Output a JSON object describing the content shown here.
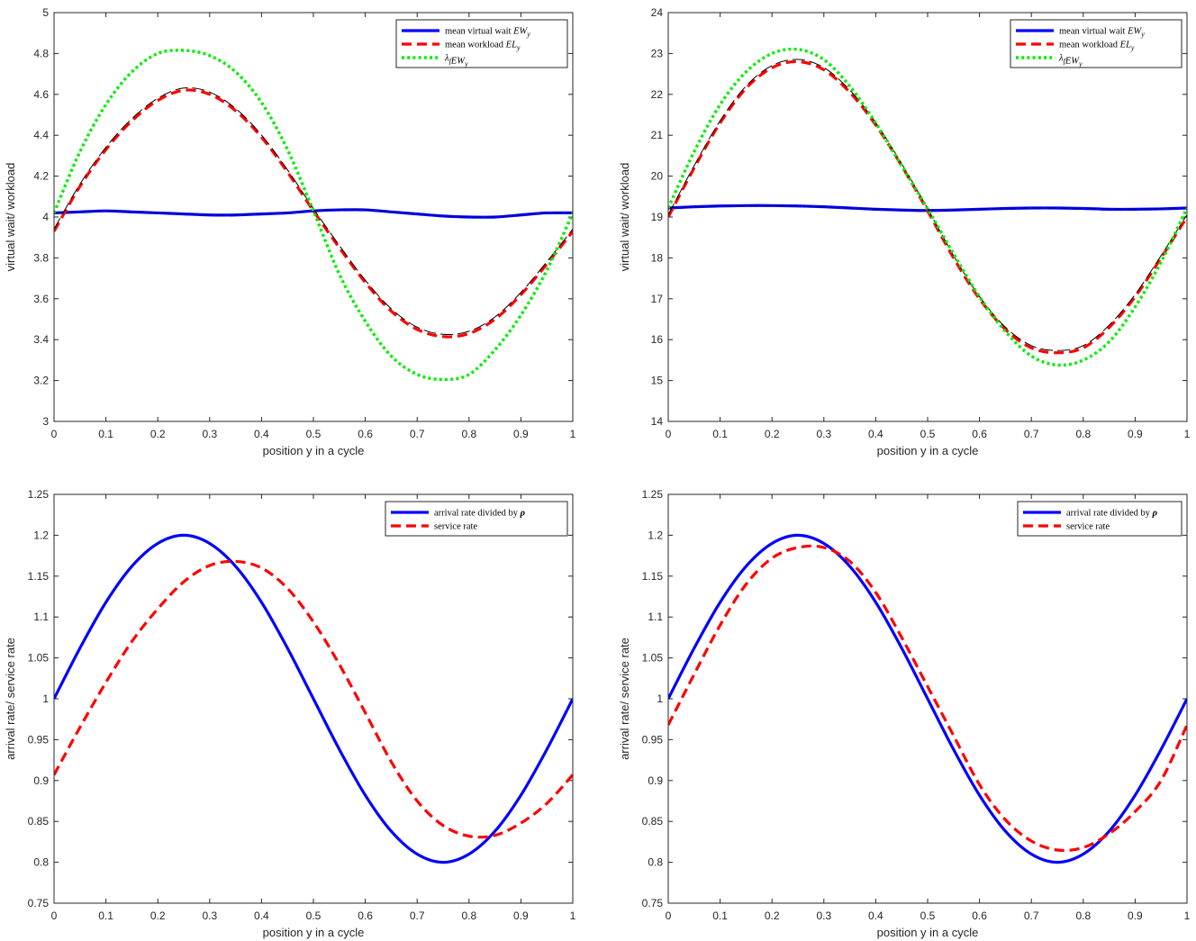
{
  "chart_data": [
    {
      "type": "line",
      "xlabel": "position y in a cycle",
      "ylabel": "virtual wait/ workload",
      "xlim": [
        0,
        1
      ],
      "ylim": [
        3,
        5
      ],
      "xticks": [
        "0",
        "0.1",
        "0.2",
        "0.3",
        "0.4",
        "0.5",
        "0.6",
        "0.7",
        "0.8",
        "0.9",
        "1"
      ],
      "yticks": [
        "3",
        "3.2",
        "3.4",
        "3.6",
        "3.8",
        "4",
        "4.2",
        "4.4",
        "4.6",
        "4.8",
        "5"
      ],
      "legend": "top-right",
      "series": [
        {
          "name": "mean virtual wait EW_y",
          "legend_main": "mean virtual wait ",
          "legend_math": "EW",
          "legend_sub": "y",
          "color": "#0000ff",
          "style": "solid",
          "x": [
            0,
            0.05,
            0.1,
            0.15,
            0.2,
            0.25,
            0.3,
            0.35,
            0.4,
            0.45,
            0.5,
            0.55,
            0.6,
            0.65,
            0.7,
            0.75,
            0.8,
            0.85,
            0.9,
            0.95,
            1
          ],
          "y": [
            4.02,
            4.025,
            4.03,
            4.025,
            4.02,
            4.015,
            4.01,
            4.01,
            4.015,
            4.02,
            4.03,
            4.035,
            4.035,
            4.025,
            4.015,
            4.005,
            4.0,
            4.0,
            4.01,
            4.02,
            4.02
          ]
        },
        {
          "name": "mean workload EL_y",
          "legend_main": "mean workload ",
          "legend_math": "EL",
          "legend_sub": "y",
          "color": "#ff0000",
          "style": "dash",
          "x": [
            0,
            0.05,
            0.1,
            0.15,
            0.2,
            0.25,
            0.3,
            0.35,
            0.4,
            0.45,
            0.5,
            0.55,
            0.6,
            0.65,
            0.7,
            0.75,
            0.8,
            0.85,
            0.9,
            0.95,
            1
          ],
          "y": [
            3.93,
            4.15,
            4.33,
            4.47,
            4.57,
            4.62,
            4.6,
            4.52,
            4.39,
            4.22,
            4.03,
            3.85,
            3.68,
            3.54,
            3.45,
            3.415,
            3.43,
            3.5,
            3.62,
            3.77,
            3.93
          ]
        },
        {
          "name": "lambda_f EW_y",
          "legend_main": "",
          "legend_math": "λ",
          "legend_sub": "f",
          "legend_math2": "EW",
          "legend_sub2": "y",
          "color": "#00ee00",
          "style": "dot",
          "x": [
            0,
            0.05,
            0.1,
            0.15,
            0.2,
            0.25,
            0.3,
            0.35,
            0.4,
            0.45,
            0.5,
            0.55,
            0.6,
            0.65,
            0.7,
            0.75,
            0.8,
            0.85,
            0.9,
            0.95,
            1
          ],
          "y": [
            4.02,
            4.32,
            4.55,
            4.71,
            4.8,
            4.815,
            4.79,
            4.71,
            4.56,
            4.33,
            4.03,
            3.72,
            3.49,
            3.32,
            3.23,
            3.205,
            3.23,
            3.35,
            3.52,
            3.74,
            4.02
          ]
        }
      ]
    },
    {
      "type": "line",
      "xlabel": "position y in a cycle",
      "ylabel": "virtual wait/ workload",
      "xlim": [
        0,
        1
      ],
      "ylim": [
        14,
        24
      ],
      "xticks": [
        "0",
        "0.1",
        "0.2",
        "0.3",
        "0.4",
        "0.5",
        "0.6",
        "0.7",
        "0.8",
        "0.9",
        "1"
      ],
      "yticks": [
        "14",
        "15",
        "16",
        "17",
        "18",
        "19",
        "20",
        "21",
        "22",
        "23",
        "24"
      ],
      "legend": "top-right",
      "series": [
        {
          "name": "mean virtual wait EW_y",
          "legend_main": "mean virtual wait ",
          "legend_math": "EW",
          "legend_sub": "y",
          "color": "#0000ff",
          "style": "solid",
          "x": [
            0,
            0.05,
            0.1,
            0.15,
            0.2,
            0.25,
            0.3,
            0.35,
            0.4,
            0.45,
            0.5,
            0.55,
            0.6,
            0.65,
            0.7,
            0.75,
            0.8,
            0.85,
            0.9,
            0.95,
            1
          ],
          "y": [
            19.22,
            19.25,
            19.27,
            19.28,
            19.28,
            19.27,
            19.25,
            19.22,
            19.19,
            19.17,
            19.16,
            19.17,
            19.19,
            19.21,
            19.22,
            19.22,
            19.21,
            19.19,
            19.19,
            19.2,
            19.22
          ]
        },
        {
          "name": "mean workload EL_y",
          "legend_main": "mean workload ",
          "legend_math": "EL",
          "legend_sub": "y",
          "color": "#ff0000",
          "style": "dash",
          "x": [
            0,
            0.05,
            0.1,
            0.15,
            0.2,
            0.25,
            0.3,
            0.35,
            0.4,
            0.45,
            0.5,
            0.55,
            0.6,
            0.65,
            0.7,
            0.75,
            0.8,
            0.85,
            0.9,
            0.95,
            1
          ],
          "y": [
            19.0,
            20.2,
            21.3,
            22.15,
            22.65,
            22.8,
            22.6,
            22.05,
            21.25,
            20.25,
            19.15,
            18.0,
            17.0,
            16.25,
            15.8,
            15.68,
            15.8,
            16.3,
            17.05,
            18.0,
            19.0
          ]
        },
        {
          "name": "lambda_f EW_y",
          "legend_main": "",
          "legend_math": "λ",
          "legend_sub": "f",
          "legend_math2": "EW",
          "legend_sub2": "y",
          "color": "#00ee00",
          "style": "dot",
          "x": [
            0,
            0.05,
            0.1,
            0.15,
            0.2,
            0.25,
            0.3,
            0.35,
            0.4,
            0.45,
            0.5,
            0.55,
            0.6,
            0.65,
            0.7,
            0.75,
            0.8,
            0.85,
            0.9,
            0.95,
            1
          ],
          "y": [
            19.22,
            20.6,
            21.75,
            22.55,
            23.0,
            23.1,
            22.85,
            22.2,
            21.3,
            20.25,
            19.2,
            18.1,
            17.05,
            16.2,
            15.6,
            15.38,
            15.5,
            15.95,
            16.8,
            17.9,
            19.22
          ]
        }
      ]
    },
    {
      "type": "line",
      "xlabel": "position y in a cycle",
      "ylabel": "arrival rate/ service rate",
      "xlim": [
        0,
        1
      ],
      "ylim": [
        0.75,
        1.25
      ],
      "xticks": [
        "0",
        "0.1",
        "0.2",
        "0.3",
        "0.4",
        "0.5",
        "0.6",
        "0.7",
        "0.8",
        "0.9",
        "1"
      ],
      "yticks": [
        "0.75",
        "0.8",
        "0.85",
        "0.9",
        "0.95",
        "1",
        "1.05",
        "1.1",
        "1.15",
        "1.2",
        "1.25"
      ],
      "legend": "top-right",
      "series": [
        {
          "name": "arrival rate divided by ρ",
          "legend_main": "arrival rate divided by ",
          "legend_bold": "ρ",
          "color": "#0000ff",
          "style": "solid",
          "x": [
            0,
            0.05,
            0.1,
            0.15,
            0.2,
            0.25,
            0.3,
            0.35,
            0.4,
            0.45,
            0.5,
            0.55,
            0.6,
            0.65,
            0.7,
            0.75,
            0.8,
            0.85,
            0.9,
            0.95,
            1
          ],
          "y": [
            1.0,
            1.062,
            1.118,
            1.162,
            1.19,
            1.2,
            1.19,
            1.162,
            1.118,
            1.062,
            1.0,
            0.938,
            0.882,
            0.838,
            0.81,
            0.8,
            0.81,
            0.838,
            0.882,
            0.938,
            1.0
          ]
        },
        {
          "name": "service rate",
          "legend_main": "service rate",
          "color": "#ff0000",
          "style": "dash",
          "x": [
            0,
            0.05,
            0.1,
            0.15,
            0.2,
            0.25,
            0.3,
            0.35,
            0.4,
            0.45,
            0.5,
            0.55,
            0.6,
            0.65,
            0.7,
            0.75,
            0.8,
            0.85,
            0.9,
            0.95,
            1
          ],
          "y": [
            0.907,
            0.965,
            1.02,
            1.07,
            1.11,
            1.143,
            1.163,
            1.168,
            1.16,
            1.135,
            1.094,
            1.042,
            0.983,
            0.923,
            0.875,
            0.845,
            0.832,
            0.833,
            0.848,
            0.872,
            0.907
          ]
        }
      ]
    },
    {
      "type": "line",
      "xlabel": "position y in a cycle",
      "ylabel": "arrival rate/ service rate",
      "xlim": [
        0,
        1
      ],
      "ylim": [
        0.75,
        1.25
      ],
      "xticks": [
        "0",
        "0.1",
        "0.2",
        "0.3",
        "0.4",
        "0.5",
        "0.6",
        "0.7",
        "0.8",
        "0.9",
        "1"
      ],
      "yticks": [
        "0.75",
        "0.8",
        "0.85",
        "0.9",
        "0.95",
        "1",
        "1.05",
        "1.1",
        "1.15",
        "1.2",
        "1.25"
      ],
      "legend": "top-right",
      "series": [
        {
          "name": "arrival rate divided by ρ",
          "legend_main": "arrival rate divided by ",
          "legend_bold": "ρ",
          "color": "#0000ff",
          "style": "solid",
          "x": [
            0,
            0.05,
            0.1,
            0.15,
            0.2,
            0.25,
            0.3,
            0.35,
            0.4,
            0.45,
            0.5,
            0.55,
            0.6,
            0.65,
            0.7,
            0.75,
            0.8,
            0.85,
            0.9,
            0.95,
            1
          ],
          "y": [
            1.0,
            1.062,
            1.118,
            1.162,
            1.19,
            1.2,
            1.19,
            1.162,
            1.118,
            1.062,
            1.0,
            0.938,
            0.882,
            0.838,
            0.81,
            0.8,
            0.81,
            0.838,
            0.882,
            0.938,
            1.0
          ]
        },
        {
          "name": "service rate",
          "legend_main": "service rate",
          "color": "#ff0000",
          "style": "dash",
          "x": [
            0,
            0.05,
            0.1,
            0.15,
            0.2,
            0.25,
            0.3,
            0.35,
            0.4,
            0.45,
            0.5,
            0.55,
            0.6,
            0.65,
            0.7,
            0.75,
            0.8,
            0.85,
            0.9,
            0.95,
            1
          ],
          "y": [
            0.968,
            1.03,
            1.09,
            1.14,
            1.172,
            1.185,
            1.185,
            1.168,
            1.13,
            1.075,
            1.015,
            0.955,
            0.895,
            0.852,
            0.826,
            0.815,
            0.818,
            0.835,
            0.862,
            0.9,
            0.968
          ]
        }
      ]
    }
  ]
}
